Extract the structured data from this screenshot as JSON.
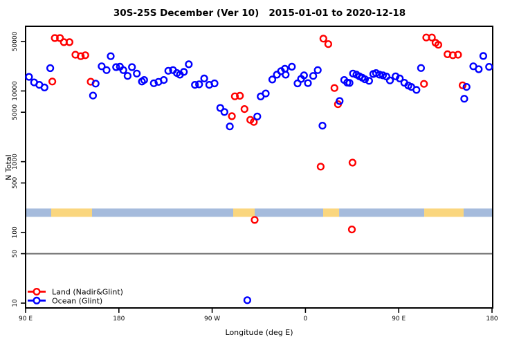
{
  "chart_data": {
    "type": "scatter",
    "title": "30S-25S December (Ver 10)   2015-01-01 to 2020-12-18",
    "xlabel": "Longitude (deg E)",
    "ylabel": "N Total",
    "x_axis": {
      "min": 90,
      "max": 540,
      "ticks": [
        {
          "value": 90,
          "label": "90 E"
        },
        {
          "value": 180,
          "label": "180"
        },
        {
          "value": 270,
          "label": "90 W"
        },
        {
          "value": 360,
          "label": "0"
        },
        {
          "value": 450,
          "label": "90 E"
        },
        {
          "value": 540,
          "label": "180"
        }
      ]
    },
    "y_axis": {
      "scale": "log",
      "min": 10,
      "max": 50000,
      "ticks": [
        {
          "value": 10,
          "label": "10"
        },
        {
          "value": 50,
          "label": "50"
        },
        {
          "value": 100,
          "label": "100"
        },
        {
          "value": 500,
          "label": "500"
        },
        {
          "value": 1000,
          "label": "1000"
        },
        {
          "value": 5000,
          "label": "5000"
        },
        {
          "value": 10000,
          "label": "10000"
        },
        {
          "value": 50000,
          "label": "50000"
        }
      ]
    },
    "reference_line": {
      "value": 50,
      "color": "#6E6E6E"
    },
    "surface_band": {
      "center_value": 190,
      "ocean_color": "#A5BBDC",
      "land_color": "#FAD67E",
      "segments": [
        {
          "type": "ocean",
          "from": 90,
          "to": 114.7
        },
        {
          "type": "land",
          "from": 114.7,
          "to": 154.1
        },
        {
          "type": "ocean",
          "from": 154.1,
          "to": 290.3
        },
        {
          "type": "land",
          "from": 290.3,
          "to": 311.0
        },
        {
          "type": "ocean",
          "from": 311.0,
          "to": 377.1
        },
        {
          "type": "land",
          "from": 377.1,
          "to": 392.5
        },
        {
          "type": "ocean",
          "from": 392.5,
          "to": 474.6
        },
        {
          "type": "land",
          "from": 474.6,
          "to": 512.6
        },
        {
          "type": "ocean",
          "from": 512.6,
          "to": 540.0
        }
      ]
    },
    "legend": {
      "position": "bottom-left",
      "entries": [
        "Land (Nadir&Glint)",
        "Ocean (Glint)"
      ]
    },
    "series": [
      {
        "name": "Land (Nadir&Glint)",
        "color": "#FF0000",
        "points": [
          [
            115.8,
            13600
          ],
          [
            118.2,
            56000
          ],
          [
            123.2,
            56000
          ],
          [
            126.9,
            49000
          ],
          [
            132.3,
            49000
          ],
          [
            138.1,
            32500
          ],
          [
            143.2,
            31000
          ],
          [
            147.6,
            32000
          ],
          [
            152.8,
            13500
          ],
          [
            289.0,
            4400
          ],
          [
            291.9,
            8400
          ],
          [
            296.8,
            8550
          ],
          [
            301.2,
            5550
          ],
          [
            306.8,
            3900
          ],
          [
            310.2,
            3650
          ],
          [
            311.0,
            150
          ],
          [
            374.7,
            850
          ],
          [
            377.3,
            55000
          ],
          [
            382.0,
            46000
          ],
          [
            388.0,
            11000
          ],
          [
            391.4,
            6500
          ],
          [
            404.8,
            110
          ],
          [
            405.4,
            970
          ],
          [
            474.4,
            12600
          ],
          [
            476.6,
            57000
          ],
          [
            482.0,
            57000
          ],
          [
            485.5,
            48000
          ],
          [
            488.2,
            45000
          ],
          [
            497.1,
            33000
          ],
          [
            502.2,
            32000
          ],
          [
            507.2,
            32500
          ],
          [
            511.6,
            12000
          ]
        ]
      },
      {
        "name": "Ocean (Glint)",
        "color": "#0000FF",
        "points": [
          [
            93.3,
            15800
          ],
          [
            98.2,
            13200
          ],
          [
            103.2,
            12200
          ],
          [
            108.2,
            11200
          ],
          [
            113.8,
            21000
          ],
          [
            155.0,
            8600
          ],
          [
            157.6,
            12700
          ],
          [
            163.4,
            22300
          ],
          [
            168.1,
            19700
          ],
          [
            172.1,
            31000
          ],
          [
            177.3,
            21700
          ],
          [
            181.0,
            22000
          ],
          [
            184.3,
            19700
          ],
          [
            188.4,
            16300
          ],
          [
            192.6,
            21700
          ],
          [
            197.3,
            17600
          ],
          [
            202.2,
            13600
          ],
          [
            204.4,
            14300
          ],
          [
            213.7,
            12850
          ],
          [
            218.2,
            13450
          ],
          [
            223.3,
            14300
          ],
          [
            227.7,
            19300
          ],
          [
            232.2,
            19700
          ],
          [
            236.0,
            17900
          ],
          [
            238.9,
            17000
          ],
          [
            242.7,
            18600
          ],
          [
            247.4,
            23800
          ],
          [
            253.4,
            12200
          ],
          [
            257.4,
            12400
          ],
          [
            262.3,
            15000
          ],
          [
            267.2,
            12200
          ],
          [
            272.3,
            12800
          ],
          [
            277.8,
            5750
          ],
          [
            281.8,
            5050
          ],
          [
            287.0,
            3150
          ],
          [
            303.9,
            11
          ],
          [
            313.5,
            4360
          ],
          [
            316.8,
            8350
          ],
          [
            321.7,
            9200
          ],
          [
            328.0,
            14500
          ],
          [
            332.4,
            17000
          ],
          [
            336.4,
            19000
          ],
          [
            340.2,
            20600
          ],
          [
            340.9,
            17000
          ],
          [
            346.9,
            22000
          ],
          [
            352.4,
            12800
          ],
          [
            355.8,
            14800
          ],
          [
            358.6,
            16600
          ],
          [
            362.4,
            12900
          ],
          [
            367.5,
            16300
          ],
          [
            371.9,
            19700
          ],
          [
            376.4,
            3230
          ],
          [
            393.0,
            7200
          ],
          [
            397.4,
            14300
          ],
          [
            400.3,
            13100
          ],
          [
            402.5,
            13000
          ],
          [
            405.9,
            17600
          ],
          [
            409.2,
            17000
          ],
          [
            412.1,
            16100
          ],
          [
            414.8,
            15400
          ],
          [
            417.4,
            14600
          ],
          [
            421.4,
            13900
          ],
          [
            425.4,
            17400
          ],
          [
            428.1,
            17900
          ],
          [
            431.5,
            17000
          ],
          [
            434.8,
            16600
          ],
          [
            438.1,
            16000
          ],
          [
            441.5,
            14100
          ],
          [
            447.0,
            16100
          ],
          [
            451.0,
            15000
          ],
          [
            455.4,
            13050
          ],
          [
            459.3,
            11900
          ],
          [
            462.1,
            11400
          ],
          [
            467.1,
            10350
          ],
          [
            471.5,
            21100
          ],
          [
            513.2,
            7750
          ],
          [
            515.4,
            11400
          ],
          [
            522.0,
            22300
          ],
          [
            527.2,
            20300
          ],
          [
            531.6,
            31200
          ],
          [
            537.2,
            21900
          ]
        ]
      }
    ]
  }
}
